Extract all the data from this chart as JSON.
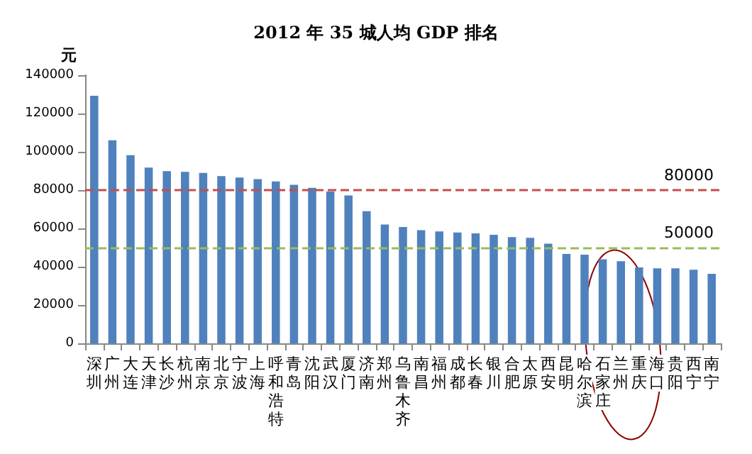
{
  "chart_data": {
    "type": "bar",
    "title": "2012 年 35 城人均 GDP 排名",
    "ylabel": "元",
    "categories": [
      "深圳",
      "广州",
      "大连",
      "天津",
      "长沙",
      "杭州",
      "南京",
      "北京",
      "宁波",
      "上海",
      "呼和浩特",
      "青岛",
      "沈阳",
      "武汉",
      "厦门",
      "济南",
      "郑州",
      "乌鲁木齐",
      "南昌",
      "福州",
      "成都",
      "长春",
      "银川",
      "合肥",
      "太原",
      "西安",
      "昆明",
      "哈尔滨",
      "石家庄",
      "兰州",
      "重庆",
      "海口",
      "贵阳",
      "西宁",
      "南宁"
    ],
    "values": [
      129300,
      106000,
      98200,
      91800,
      89900,
      89500,
      89000,
      87300,
      86600,
      85700,
      84500,
      82800,
      81200,
      79300,
      77200,
      69000,
      62000,
      60700,
      59100,
      58400,
      57900,
      57400,
      56700,
      55500,
      55100,
      52000,
      46700,
      46300,
      43900,
      42900,
      39600,
      39200,
      39200,
      38400,
      36300
    ],
    "color": "#4f81bd",
    "ylim": [
      0,
      140000
    ],
    "yticks": [
      0,
      20000,
      40000,
      60000,
      80000,
      100000,
      120000,
      140000
    ],
    "grid": false,
    "ref_lines": [
      {
        "axis": "y",
        "value": 80000,
        "label": "80000",
        "color": "#c0504d",
        "line_style": "dashed"
      },
      {
        "axis": "y",
        "value": 50000,
        "label": "50000",
        "color": "#9bbb59",
        "line_style": "dashed"
      }
    ]
  }
}
